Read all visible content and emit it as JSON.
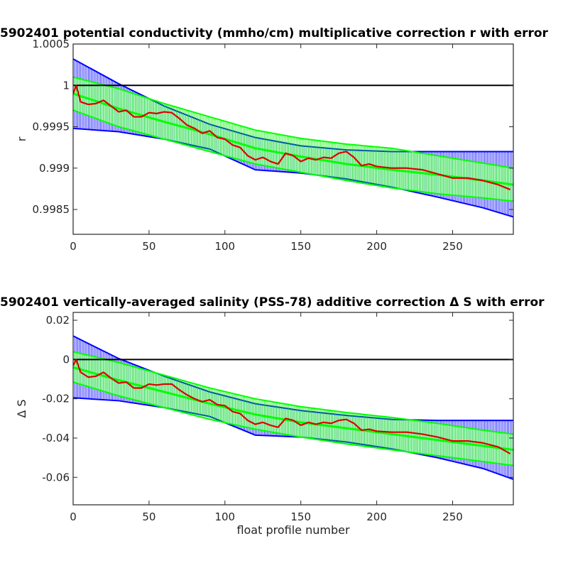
{
  "chart_data": [
    {
      "type": "line",
      "title": "5902401 potential conductivity (mmho/cm) multiplicative correction r with error",
      "xlabel": "",
      "ylabel": "r",
      "xlim": [
        0,
        290
      ],
      "ylim": [
        0.9982,
        1.0005
      ],
      "xticks": [
        0,
        50,
        100,
        150,
        200,
        250
      ],
      "yticks": [
        0.9985,
        0.999,
        0.9995,
        1,
        1.0005
      ],
      "ytick_labels": [
        "0.9985",
        "0.999",
        "0.9995",
        "1",
        "1.0005"
      ],
      "reference_line": 1,
      "grid": false,
      "colors": {
        "reference": "#000000",
        "blue_error": "#0000ff",
        "green_fit": "#00ff00",
        "red_series": "#dd0000"
      },
      "series": [
        {
          "role": "blue-error-bars",
          "x": [
            0,
            30,
            60,
            90,
            120,
            150,
            180,
            210,
            240,
            270,
            290
          ],
          "upper": [
            1.00032,
            1.00002,
            0.99975,
            0.99953,
            0.99937,
            0.99927,
            0.99922,
            0.9992,
            0.9992,
            0.9992,
            0.9992
          ],
          "lower": [
            0.99948,
            0.99944,
            0.99935,
            0.99923,
            0.99898,
            0.99894,
            0.99887,
            0.99877,
            0.99865,
            0.99852,
            0.99841
          ]
        },
        {
          "role": "green-fit-error-bars",
          "x": [
            0,
            30,
            60,
            90,
            120,
            150,
            180,
            210,
            240,
            270,
            290
          ],
          "upper": [
            1.0001,
            0.99996,
            0.99978,
            0.99962,
            0.99946,
            0.99936,
            0.99929,
            0.99924,
            0.99915,
            0.99906,
            0.999
          ],
          "center": [
            0.9999,
            0.99972,
            0.99956,
            0.99941,
            0.99924,
            0.99914,
            0.99905,
            0.99898,
            0.99892,
            0.99885,
            0.9988
          ],
          "lower": [
            0.9997,
            0.9995,
            0.99935,
            0.9992,
            0.99905,
            0.99895,
            0.99885,
            0.99876,
            0.99869,
            0.99864,
            0.9986
          ]
        },
        {
          "role": "red-series",
          "x": [
            0,
            2,
            5,
            10,
            15,
            20,
            25,
            30,
            35,
            40,
            45,
            50,
            55,
            60,
            65,
            70,
            75,
            80,
            85,
            90,
            95,
            100,
            105,
            110,
            115,
            120,
            125,
            130,
            135,
            140,
            145,
            150,
            155,
            160,
            165,
            170,
            175,
            180,
            185,
            190,
            195,
            200,
            210,
            220,
            230,
            240,
            250,
            260,
            270,
            280,
            288
          ],
          "y": [
            0.9999,
            1.0,
            0.9998,
            0.99977,
            0.99978,
            0.99982,
            0.99975,
            0.99968,
            0.9997,
            0.99962,
            0.99962,
            0.99967,
            0.99966,
            0.99968,
            0.99967,
            0.9996,
            0.99952,
            0.99948,
            0.99942,
            0.99945,
            0.99937,
            0.99935,
            0.99928,
            0.99925,
            0.99915,
            0.9991,
            0.99913,
            0.99908,
            0.99905,
            0.99918,
            0.99915,
            0.99908,
            0.99912,
            0.9991,
            0.99913,
            0.99912,
            0.99918,
            0.9992,
            0.99913,
            0.99903,
            0.99905,
            0.99902,
            0.999,
            0.999,
            0.99898,
            0.99893,
            0.99888,
            0.99888,
            0.99885,
            0.9988,
            0.99874
          ]
        }
      ]
    },
    {
      "type": "line",
      "title": "5902401 vertically-averaged salinity (PSS-78) additive correction Δ S with error",
      "xlabel": "float profile number",
      "ylabel": "Δ S",
      "xlim": [
        0,
        290
      ],
      "ylim": [
        -0.074,
        0.024
      ],
      "xticks": [
        0,
        50,
        100,
        150,
        200,
        250
      ],
      "yticks": [
        -0.06,
        -0.04,
        -0.02,
        0,
        0.02
      ],
      "ytick_labels": [
        "-0.06",
        "-0.04",
        "-0.02",
        "0",
        "0.02"
      ],
      "reference_line": 0,
      "grid": false,
      "colors": {
        "reference": "#000000",
        "blue_error": "#0000ff",
        "green_fit": "#00ff00",
        "red_series": "#dd0000"
      },
      "series": [
        {
          "role": "blue-error-bars",
          "x": [
            0,
            30,
            60,
            90,
            120,
            150,
            180,
            210,
            240,
            270,
            290
          ],
          "upper": [
            0.012,
            0.0005,
            -0.0085,
            -0.0165,
            -0.0225,
            -0.026,
            -0.0285,
            -0.0305,
            -0.031,
            -0.031,
            -0.031
          ],
          "lower": [
            -0.0195,
            -0.021,
            -0.0245,
            -0.029,
            -0.0385,
            -0.0395,
            -0.042,
            -0.0455,
            -0.05,
            -0.0555,
            -0.061
          ]
        },
        {
          "role": "green-fit-error-bars",
          "x": [
            0,
            30,
            60,
            90,
            120,
            150,
            180,
            210,
            240,
            270,
            290
          ],
          "upper": [
            0.004,
            -0.0015,
            -0.008,
            -0.0145,
            -0.02,
            -0.024,
            -0.027,
            -0.0295,
            -0.0325,
            -0.036,
            -0.038
          ],
          "center": [
            -0.004,
            -0.0105,
            -0.0165,
            -0.0225,
            -0.028,
            -0.032,
            -0.035,
            -0.038,
            -0.041,
            -0.044,
            -0.046
          ],
          "lower": [
            -0.0115,
            -0.0185,
            -0.0245,
            -0.0305,
            -0.0355,
            -0.0395,
            -0.043,
            -0.046,
            -0.049,
            -0.052,
            -0.054
          ]
        },
        {
          "role": "red-series",
          "x": [
            0,
            2,
            5,
            10,
            15,
            20,
            25,
            30,
            35,
            40,
            45,
            50,
            55,
            60,
            65,
            70,
            75,
            80,
            85,
            90,
            95,
            100,
            105,
            110,
            115,
            120,
            125,
            130,
            135,
            140,
            145,
            150,
            155,
            160,
            165,
            170,
            175,
            180,
            185,
            190,
            195,
            200,
            210,
            220,
            230,
            240,
            250,
            260,
            270,
            280,
            288
          ],
          "y": [
            -0.003,
            0.0,
            -0.0065,
            -0.009,
            -0.0085,
            -0.0065,
            -0.0095,
            -0.012,
            -0.0115,
            -0.0145,
            -0.0145,
            -0.0125,
            -0.013,
            -0.0125,
            -0.0125,
            -0.0155,
            -0.018,
            -0.02,
            -0.0215,
            -0.0205,
            -0.023,
            -0.0235,
            -0.0265,
            -0.0275,
            -0.031,
            -0.033,
            -0.032,
            -0.0335,
            -0.0345,
            -0.03,
            -0.031,
            -0.0335,
            -0.032,
            -0.033,
            -0.032,
            -0.0325,
            -0.031,
            -0.0305,
            -0.0325,
            -0.036,
            -0.0355,
            -0.0365,
            -0.037,
            -0.037,
            -0.038,
            -0.0395,
            -0.0415,
            -0.0415,
            -0.0425,
            -0.0445,
            -0.048
          ]
        }
      ]
    }
  ]
}
